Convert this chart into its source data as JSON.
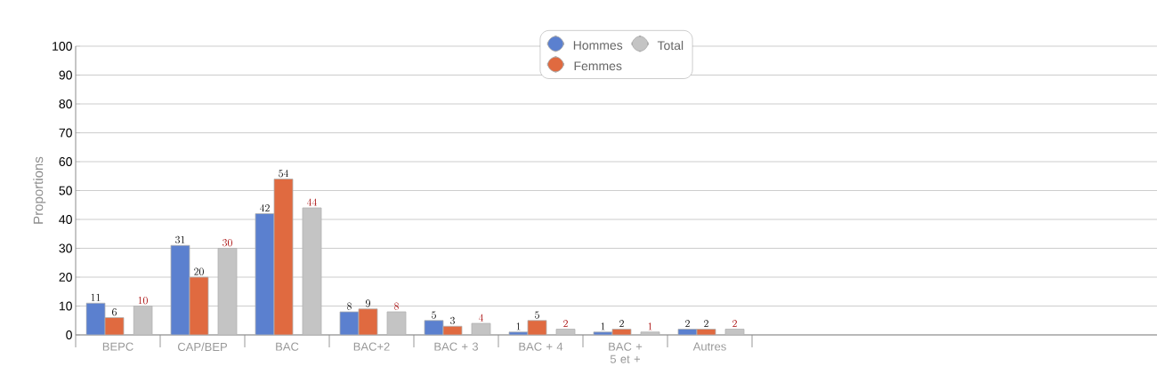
{
  "chart_data": {
    "type": "bar",
    "ylabel": "Proportions",
    "categories": [
      "BEPC",
      "CAP/BEP",
      "BAC",
      "BAC+2",
      "BAC + 3",
      "BAC + 4",
      "BAC + 5 et +",
      "Autres"
    ],
    "series": [
      {
        "name": "Hommes",
        "color": "#5b80cf",
        "values": [
          11,
          31,
          42,
          8,
          5,
          1,
          1,
          2
        ]
      },
      {
        "name": "Femmes",
        "color": "#e06a40",
        "values": [
          6,
          20,
          54,
          9,
          3,
          5,
          2,
          2
        ]
      },
      {
        "name": "Total",
        "color": "#c4c4c4",
        "values": [
          10,
          30,
          44,
          8,
          4,
          2,
          1,
          2
        ]
      }
    ],
    "ylim": [
      0,
      100
    ],
    "yticks": [
      0,
      10,
      20,
      30,
      40,
      50,
      60,
      70,
      80,
      90,
      100
    ],
    "grid": "y",
    "legend": "top",
    "data_labels": true
  }
}
